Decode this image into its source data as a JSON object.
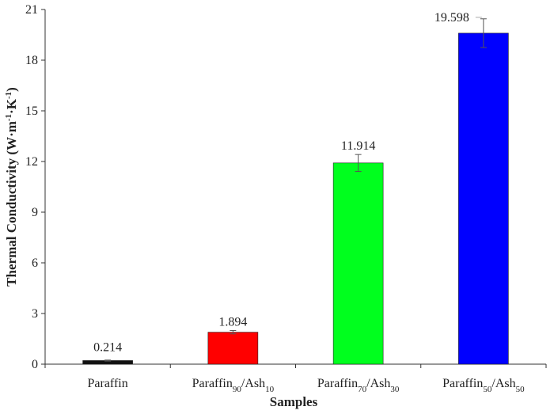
{
  "chart_data": {
    "type": "bar",
    "title": "",
    "xlabel": "Samples",
    "ylabel": {
      "base": "Thermal Conductivity (W·m",
      "exp1": "-1",
      "mid": "·K",
      "exp2": "-1",
      "end": ")"
    },
    "ylim": [
      0,
      21
    ],
    "yticks": [
      "0",
      "3",
      "6",
      "9",
      "12",
      "15",
      "18",
      "21"
    ],
    "grid": false,
    "legend": "none",
    "categories": [
      {
        "base": "Paraffin",
        "sub1": "",
        "mid": "",
        "sub2": ""
      },
      {
        "base": "Paraffin",
        "sub1": "90",
        "mid": "/Ash",
        "sub2": "10"
      },
      {
        "base": "Paraffin",
        "sub1": "70",
        "mid": "/Ash",
        "sub2": "30"
      },
      {
        "base": "Paraffin",
        "sub1": "50",
        "mid": "/Ash",
        "sub2": "50"
      }
    ],
    "values": [
      0.214,
      1.894,
      11.914,
      19.598
    ],
    "data_labels": [
      "0.214",
      "1.894",
      "11.914",
      "19.598"
    ],
    "error": [
      0.03,
      0.1,
      0.5,
      0.85
    ],
    "colors": [
      "#111111",
      "#ff0000",
      "#00ff1e",
      "#0000ff"
    ]
  }
}
